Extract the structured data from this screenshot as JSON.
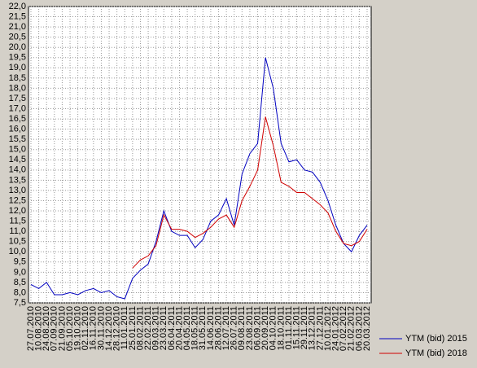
{
  "chart_data": {
    "type": "line",
    "categories": [
      "27.07.2010",
      "10.08.2010",
      "24.08.2010",
      "07.09.2010",
      "21.09.2010",
      "05.10.2010",
      "19.10.2010",
      "02.11.2010",
      "16.11.2010",
      "30.11.2010",
      "14.12.2010",
      "28.12.2010",
      "11.01.2011",
      "25.01.2011",
      "08.02.2011",
      "22.02.2011",
      "09.03.2011",
      "23.03.2011",
      "06.04.2011",
      "20.04.2011",
      "04.05.2011",
      "18.05.2011",
      "31.05.2011",
      "14.06.2011",
      "28.06.2011",
      "12.07.2011",
      "26.07.2011",
      "09.08.2011",
      "23.08.2011",
      "06.09.2011",
      "20.09.2011",
      "04.10.2011",
      "18.10.2011",
      "01.11.2011",
      "15.11.2011",
      "29.11.2011",
      "13.12.2011",
      "27.12.2011",
      "10.01.2012",
      "24.01.2012",
      "07.02.2012",
      "21.02.2012",
      "06.03.2012",
      "20.03.2012"
    ],
    "series": [
      {
        "name": "YTM (bid) 2015",
        "color": "#0000c0",
        "values": [
          8.4,
          8.2,
          8.5,
          7.9,
          7.9,
          8.0,
          7.9,
          8.1,
          8.2,
          8.0,
          8.1,
          7.8,
          7.7,
          8.7,
          9.1,
          9.4,
          10.5,
          12.0,
          11.0,
          10.8,
          10.8,
          10.2,
          10.6,
          11.5,
          11.8,
          12.6,
          11.3,
          13.8,
          14.8,
          15.3,
          19.5,
          18.0,
          15.3,
          14.4,
          14.5,
          14.0,
          13.9,
          13.4,
          12.5,
          11.3,
          10.4,
          10.0,
          10.8,
          11.3
        ]
      },
      {
        "name": "YTM (bid) 2018",
        "color": "#d00000",
        "values": [
          null,
          null,
          null,
          null,
          null,
          null,
          null,
          null,
          null,
          null,
          null,
          null,
          null,
          9.2,
          9.6,
          9.8,
          10.3,
          11.8,
          11.1,
          11.1,
          11.0,
          10.7,
          10.9,
          11.2,
          11.6,
          11.8,
          11.2,
          12.5,
          13.2,
          14.0,
          16.6,
          15.2,
          13.4,
          13.2,
          12.9,
          12.9,
          12.6,
          12.3,
          11.9,
          11.0,
          10.4,
          10.3,
          10.5,
          11.1
        ]
      }
    ],
    "ylim": [
      7.5,
      22.0
    ],
    "yticks": [
      {
        "value": 7.5,
        "label": "7,5"
      },
      {
        "value": 8.0,
        "label": "8,0"
      },
      {
        "value": 8.5,
        "label": "8,5"
      },
      {
        "value": 9.0,
        "label": "9,0"
      },
      {
        "value": 9.5,
        "label": "9,5"
      },
      {
        "value": 10.0,
        "label": "10,0"
      },
      {
        "value": 10.5,
        "label": "10,5"
      },
      {
        "value": 11.0,
        "label": "11,0"
      },
      {
        "value": 11.5,
        "label": "11,5"
      },
      {
        "value": 12.0,
        "label": "12,0"
      },
      {
        "value": 12.5,
        "label": "12,5"
      },
      {
        "value": 13.0,
        "label": "13,0"
      },
      {
        "value": 13.5,
        "label": "13,5"
      },
      {
        "value": 14.0,
        "label": "14,0"
      },
      {
        "value": 14.5,
        "label": "14,5"
      },
      {
        "value": 15.0,
        "label": "15,0"
      },
      {
        "value": 15.5,
        "label": "15,5"
      },
      {
        "value": 16.0,
        "label": "16,0"
      },
      {
        "value": 16.5,
        "label": "16,5"
      },
      {
        "value": 17.0,
        "label": "17,0"
      },
      {
        "value": 17.5,
        "label": "17,5"
      },
      {
        "value": 18.0,
        "label": "18,0"
      },
      {
        "value": 18.5,
        "label": "18,5"
      },
      {
        "value": 19.0,
        "label": "19,0"
      },
      {
        "value": 19.5,
        "label": "19,5"
      },
      {
        "value": 20.0,
        "label": "20,0"
      },
      {
        "value": 20.5,
        "label": "20,5"
      },
      {
        "value": 21.0,
        "label": "21,0"
      },
      {
        "value": 21.5,
        "label": "21,5"
      },
      {
        "value": 22.0,
        "label": "22,0"
      }
    ],
    "grid": true,
    "legend": "bottom-right"
  }
}
